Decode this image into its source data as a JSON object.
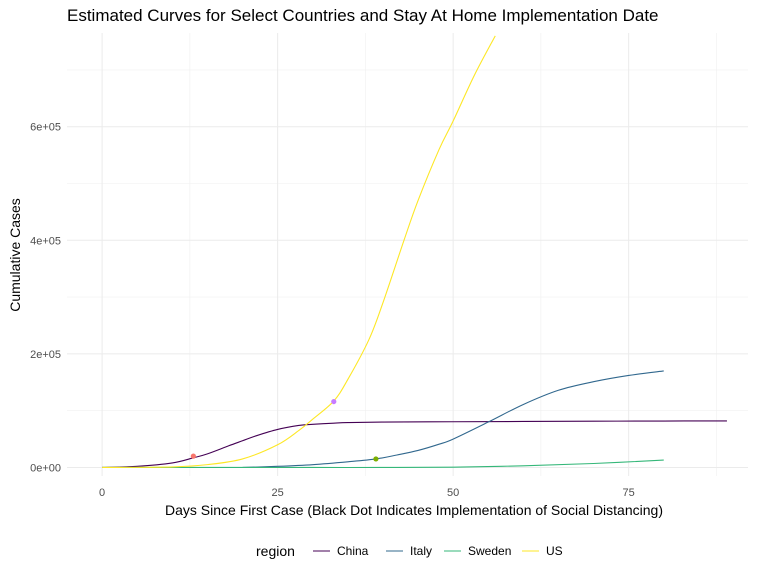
{
  "chart_data": {
    "type": "line",
    "title": "Estimated Curves for Select Countries and Stay At Home Implementation Date",
    "xlabel": "Days Since First Case (Black Dot Indicates Implementation of Social Distancing)",
    "ylabel": "Cumulative Cases",
    "xlim": [
      -5,
      92
    ],
    "ylim": [
      -15000,
      765000
    ],
    "x_ticks": [
      0,
      25,
      50,
      75
    ],
    "x_tick_labels": [
      "0",
      "25",
      "50",
      "75"
    ],
    "y_ticks": [
      0,
      200000,
      400000,
      600000
    ],
    "y_tick_labels": [
      "0e+00",
      "2e+05",
      "4e+05",
      "6e+05"
    ],
    "grid": true,
    "legend_title": "region",
    "legend_position": "bottom",
    "series": [
      {
        "name": "China",
        "color": "#440154",
        "x": [
          0,
          5,
          10,
          13,
          15,
          18,
          20,
          22,
          25,
          28,
          30,
          33,
          35,
          40,
          50,
          60,
          70,
          80,
          89
        ],
        "y": [
          0,
          2000,
          8000,
          17000,
          24000,
          38000,
          47000,
          56000,
          67000,
          74000,
          76000,
          78000,
          79000,
          80000,
          80500,
          81000,
          81500,
          81800,
          82000
        ],
        "marker": {
          "x": 13,
          "y": 20000,
          "color": "#f8766d"
        }
      },
      {
        "name": "Italy",
        "color": "#31688e",
        "x": [
          20,
          25,
          30,
          35,
          39,
          42,
          45,
          48,
          50,
          55,
          60,
          65,
          70,
          75,
          80
        ],
        "y": [
          0,
          2000,
          5000,
          10000,
          15000,
          22000,
          30000,
          41000,
          50000,
          80000,
          111000,
          136000,
          151000,
          162000,
          170000
        ],
        "marker": {
          "x": 39,
          "y": 15000,
          "color": "#7cae00"
        }
      },
      {
        "name": "Sweden",
        "color": "#35b779",
        "x": [
          0,
          10,
          20,
          30,
          40,
          50,
          60,
          70,
          80
        ],
        "y": [
          0,
          0,
          0,
          0,
          0,
          500,
          3000,
          7000,
          13000
        ],
        "marker": null
      },
      {
        "name": "US",
        "color": "#fde725",
        "x": [
          0,
          10,
          15,
          20,
          25,
          28,
          30,
          33,
          35,
          38,
          40,
          43,
          45,
          48,
          50,
          53,
          56
        ],
        "y": [
          0,
          1000,
          5000,
          15000,
          40000,
          65000,
          85000,
          117000,
          155000,
          225000,
          290000,
          400000,
          470000,
          560000,
          610000,
          690000,
          760000
        ],
        "marker": {
          "x": 33,
          "y": 116000,
          "color": "#c77cff"
        }
      }
    ]
  }
}
